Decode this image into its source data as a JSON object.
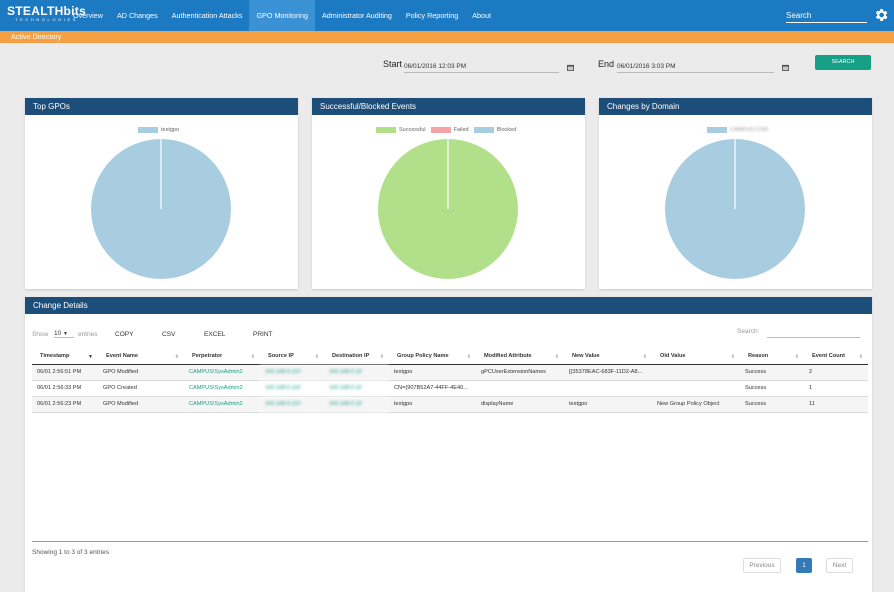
{
  "app": {
    "logo_main": "STEALTHbits",
    "logo_sub": "TECHNOLOGIES"
  },
  "nav": {
    "items": [
      {
        "label": "Overview"
      },
      {
        "label": "AD Changes"
      },
      {
        "label": "Authentication Attacks"
      },
      {
        "label": "GPO Monitoring",
        "active": true
      },
      {
        "label": "Administrator Auditing"
      },
      {
        "label": "Policy Reporting"
      },
      {
        "label": "About"
      }
    ],
    "search_placeholder": "Search",
    "settings_icon": "gear-icon"
  },
  "subbar": {
    "title": "Active Directory"
  },
  "filters": {
    "start_label": "Start",
    "start_value": "06/01/2016 12:03 PM",
    "end_label": "End",
    "end_value": "06/01/2016 3:03 PM",
    "search_button": "SEARCH",
    "calendar_icon": "calendar-icon"
  },
  "colors": {
    "nav_bg": "#1b7ac2",
    "nav_active": "#3a91d3",
    "subbar": "#f5a043",
    "panel_head": "#1d4e79",
    "accent": "#16a085",
    "blue_series": "#a8cde1",
    "green_series": "#b2e08a",
    "red_series": "#f4a3a7"
  },
  "panels": {
    "top_gpos": {
      "title": "Top GPOs",
      "legend": [
        "testgpo"
      ]
    },
    "events": {
      "title": "Successful/Blocked Events",
      "legend": [
        "Successful",
        "Failed",
        "Blocked"
      ]
    },
    "domains": {
      "title": "Changes by Domain",
      "legend": [
        "CAMPUS.COM"
      ]
    }
  },
  "chart_data": [
    {
      "type": "pie",
      "title": "Top GPOs",
      "categories": [
        "testgpo"
      ],
      "values": [
        3
      ],
      "colors": [
        "#a8cde1"
      ]
    },
    {
      "type": "pie",
      "title": "Successful/Blocked Events",
      "categories": [
        "Successful",
        "Failed",
        "Blocked"
      ],
      "values": [
        3,
        0,
        0
      ],
      "colors": [
        "#b2e08a",
        "#f4a3a7",
        "#a8cde1"
      ]
    },
    {
      "type": "pie",
      "title": "Changes by Domain",
      "categories": [
        "CAMPUS.COM"
      ],
      "values": [
        3
      ],
      "colors": [
        "#a8cde1"
      ]
    }
  ],
  "details": {
    "title": "Change Details",
    "show_label": "Show",
    "page_size": "10",
    "entries_label": "entries",
    "buttons": [
      "COPY",
      "CSV",
      "EXCEL",
      "PRINT"
    ],
    "search_label": "Search:",
    "columns": [
      "Timestamp",
      "Event Name",
      "Perpetrator",
      "Source IP",
      "Destination IP",
      "Group Policy Name",
      "Modified Attribute",
      "New Value",
      "Old Value",
      "Reason",
      "Event Count"
    ],
    "rows": [
      [
        "06/01 2:56:51 PM",
        "GPO Modified",
        "CAMPUS\\SysAdmin2",
        "192.168.0.110",
        "192.168.0.10",
        "testgpo",
        "gPCUserExtensionNames",
        "[{35378EAC-683F-11D2-A8...",
        "",
        "Success",
        "2"
      ],
      [
        "06/01 2:56:33 PM",
        "GPO Created",
        "CAMPUS\\SysAdmin2",
        "192.168.0.110",
        "192.168.0.10",
        "CN={907B52A7-44FF-4E40...",
        "",
        "",
        "",
        "Success",
        "1"
      ],
      [
        "06/01 2:56:23 PM",
        "GPO Modified",
        "CAMPUS\\SysAdmin2",
        "192.168.0.110",
        "192.168.0.10",
        "testgpo",
        "displayName",
        "testgpo",
        "New Group Policy Object",
        "Success",
        "11"
      ]
    ],
    "summary": "Showing 1 to 3 of 3 entries",
    "pagination": {
      "previous": "Previous",
      "current": "1",
      "next": "Next"
    }
  }
}
